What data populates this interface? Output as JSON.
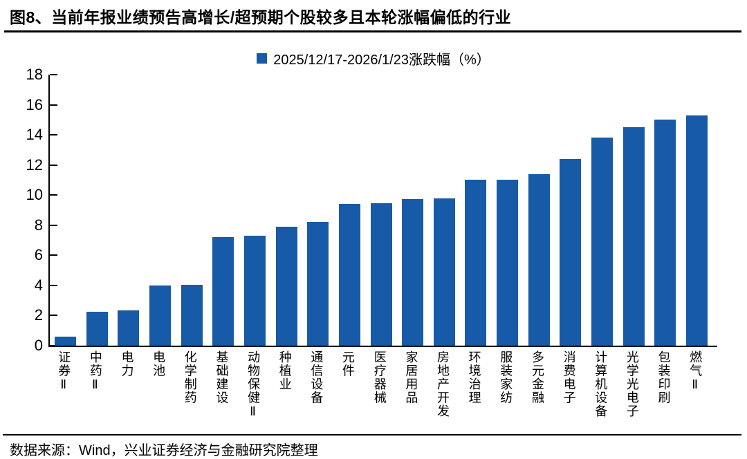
{
  "header": {
    "title": "图8、当前年报业绩预告高增长/超预期个股较多且本轮涨幅偏低的行业"
  },
  "legend": {
    "label": "2025/12/17-2026/1/23涨跌幅（%）"
  },
  "footer": {
    "source": "数据来源：Wind，兴业证券经济与金融研究院整理"
  },
  "colors": {
    "bar": "#165AA8",
    "axis": "#000000",
    "text": "#000000"
  },
  "chart_data": {
    "type": "bar",
    "title": "图8、当前年报业绩预告高增长/超预期个股较多且本轮涨幅偏低的行业",
    "series_name": "2025/12/17-2026/1/23涨跌幅（%）",
    "categories": [
      "证券Ⅱ",
      "中药Ⅱ",
      "电力",
      "电池",
      "化学制药",
      "基础建设",
      "动物保健Ⅱ",
      "种植业",
      "通信设备",
      "元件",
      "医疗器械",
      "家居用品",
      "房地产开发",
      "环境治理",
      "服装家纺",
      "多元金融",
      "消费电子",
      "计算机设备",
      "光学光电子",
      "包装印刷",
      "燃气Ⅱ"
    ],
    "values": [
      0.6,
      2.25,
      2.35,
      4.0,
      4.05,
      7.2,
      7.3,
      7.9,
      8.2,
      9.4,
      9.45,
      9.75,
      9.8,
      11.0,
      11.0,
      11.4,
      12.4,
      13.8,
      14.5,
      15.0,
      15.3
    ],
    "xlabel": "",
    "ylabel": "",
    "ylim": [
      0,
      18
    ],
    "ytick_step": 2,
    "grid": false,
    "legend_position": "top-center",
    "bar_color": "#165AA8"
  }
}
